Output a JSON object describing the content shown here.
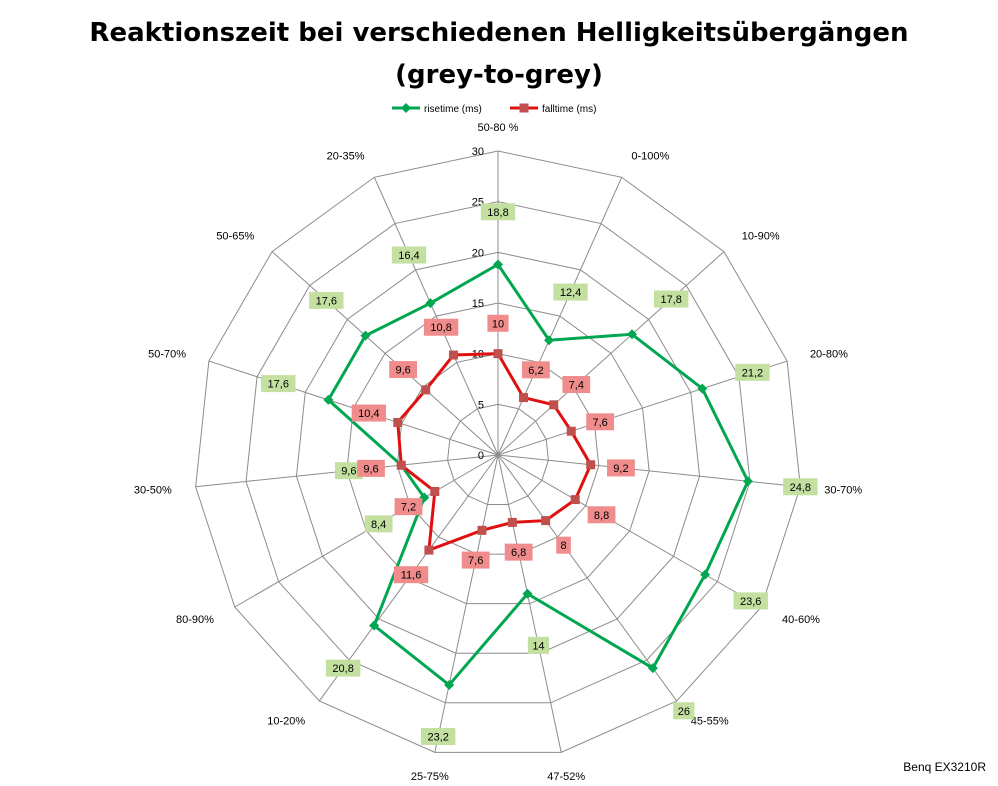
{
  "chart_data": {
    "type": "radar",
    "title": [
      "Reaktionszeit bei verschiedenen Helligkeitsübergängen",
      "(grey-to-grey)"
    ],
    "categories": [
      "50-80 %",
      "0-100%",
      "10-90%",
      "20-80%",
      "30-70%",
      "40-60%",
      "45-55%",
      "47-52%",
      "25-75%",
      "10-20%",
      "80-90%",
      "30-50%",
      "50-70%",
      "50-65%",
      "20-35%"
    ],
    "radial_ticks": [
      0,
      5,
      10,
      15,
      20,
      25,
      30
    ],
    "rlim": [
      0,
      30
    ],
    "grid": true,
    "legend_position": "top",
    "series": [
      {
        "name": "risetime (ms)",
        "color": "#00a650",
        "label_bg": "#c4e0a0",
        "marker": "diamond",
        "values": [
          18.8,
          12.4,
          17.8,
          21.2,
          24.8,
          23.6,
          26,
          14,
          23.2,
          20.8,
          8.4,
          9.6,
          17.6,
          17.6,
          16.4
        ],
        "labels": [
          "18,8",
          "12,4",
          "17,8",
          "21,2",
          "24,8",
          "23,6",
          "26",
          "14",
          "23,2",
          "20,8",
          "8,4",
          "9,6",
          "17,6",
          "17,6",
          "16,4"
        ]
      },
      {
        "name": "falltime (ms)",
        "color": "#e01010",
        "marker_color": "#c0504d",
        "label_bg": "#f08c8c",
        "marker": "square",
        "values": [
          10,
          6.2,
          7.4,
          7.6,
          9.2,
          8.8,
          8,
          6.8,
          7.6,
          11.6,
          7.2,
          9.6,
          10.4,
          9.6,
          10.8
        ],
        "labels": [
          "10",
          "6,2",
          "7,4",
          "7,6",
          "9,2",
          "8,8",
          "8",
          "6,8",
          "7,6",
          "11,6",
          "7,2",
          "9,6",
          "10,4",
          "9,6",
          "10,8"
        ]
      }
    ]
  },
  "footer": {
    "credit": "Benq EX3210R"
  }
}
